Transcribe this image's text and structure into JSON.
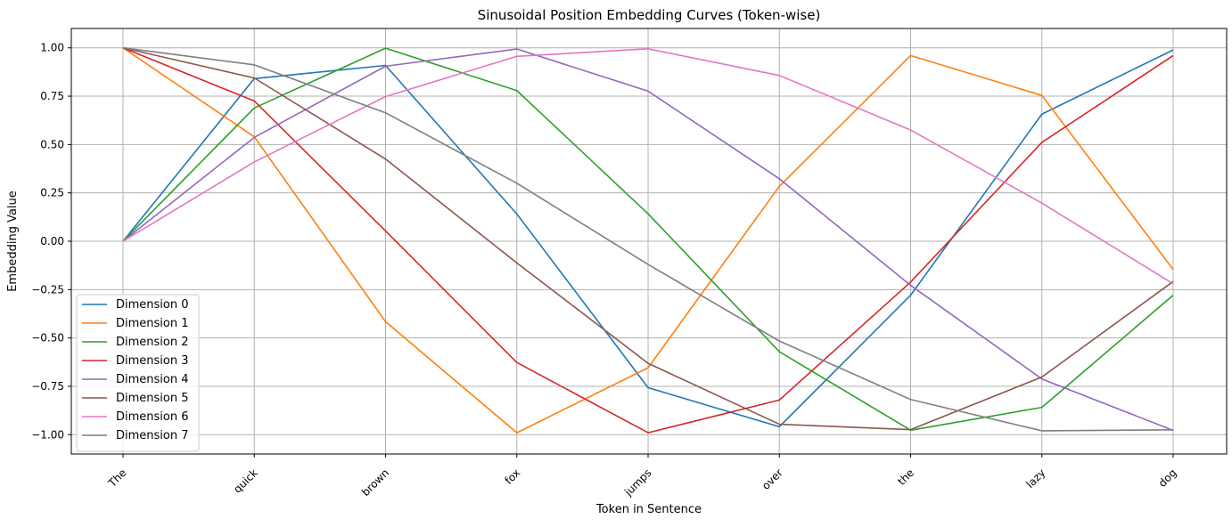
{
  "chart_data": {
    "type": "line",
    "title": "Sinusoidal Position Embedding Curves (Token-wise)",
    "xlabel": "Token in Sentence",
    "ylabel": "Embedding Value",
    "categories": [
      "The",
      "quick",
      "brown",
      "fox",
      "jumps",
      "over",
      "the",
      "lazy",
      "dog"
    ],
    "ylim": [
      -1.1,
      1.1
    ],
    "yticks": [
      -1.0,
      -0.75,
      -0.5,
      -0.25,
      0.0,
      0.25,
      0.5,
      0.75,
      1.0
    ],
    "ytick_labels": [
      "−1.00",
      "−0.75",
      "−0.50",
      "−0.25",
      "0.00",
      "0.25",
      "0.50",
      "0.75",
      "1.00"
    ],
    "grid": true,
    "legend_position": "bottom-left",
    "series": [
      {
        "name": "Dimension 0",
        "color": "#1f77b4",
        "values": [
          0.0,
          0.841,
          0.909,
          0.141,
          -0.757,
          -0.959,
          -0.279,
          0.657,
          0.989
        ]
      },
      {
        "name": "Dimension 1",
        "color": "#ff7f0e",
        "values": [
          1.0,
          0.54,
          -0.416,
          -0.99,
          -0.654,
          0.284,
          0.96,
          0.754,
          -0.146
        ]
      },
      {
        "name": "Dimension 2",
        "color": "#2ca02c",
        "values": [
          0.0,
          0.689,
          0.998,
          0.779,
          0.142,
          -0.571,
          -0.977,
          -0.859,
          -0.279
        ]
      },
      {
        "name": "Dimension 3",
        "color": "#d62728",
        "values": [
          1.0,
          0.725,
          0.053,
          -0.627,
          -0.99,
          -0.821,
          -0.211,
          0.511,
          0.96
        ]
      },
      {
        "name": "Dimension 4",
        "color": "#9467bd",
        "values": [
          0.0,
          0.537,
          0.905,
          0.994,
          0.776,
          0.323,
          -0.228,
          -0.712,
          -0.978
        ]
      },
      {
        "name": "Dimension 5",
        "color": "#8c564b",
        "values": [
          1.0,
          0.844,
          0.425,
          -0.112,
          -0.631,
          -0.946,
          -0.974,
          -0.702,
          -0.208
        ]
      },
      {
        "name": "Dimension 6",
        "color": "#e377c2",
        "values": [
          0.0,
          0.41,
          0.748,
          0.956,
          0.995,
          0.857,
          0.575,
          0.197,
          -0.22
        ]
      },
      {
        "name": "Dimension 7",
        "color": "#7f7f7f",
        "values": [
          1.0,
          0.912,
          0.664,
          0.3,
          -0.12,
          -0.516,
          -0.818,
          -0.98,
          -0.975
        ]
      }
    ]
  }
}
